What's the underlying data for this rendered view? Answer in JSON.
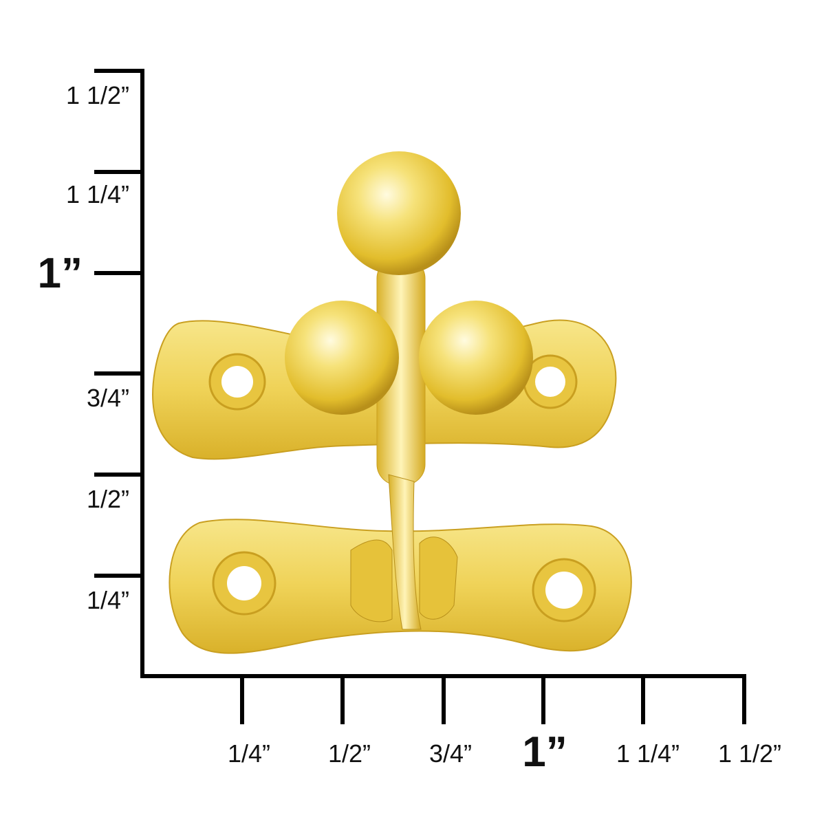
{
  "ruler": {
    "vertical_labels": [
      "1 1/2”",
      "1 1/4”",
      "1”",
      "3/4”",
      "1/2”",
      "1/4”"
    ],
    "horizontal_labels": [
      "1/4”",
      "1/2”",
      "3/4”",
      "1”",
      "1 1/4”",
      "1 1/2”"
    ]
  },
  "product": {
    "finish_color": "#f2d24e"
  }
}
